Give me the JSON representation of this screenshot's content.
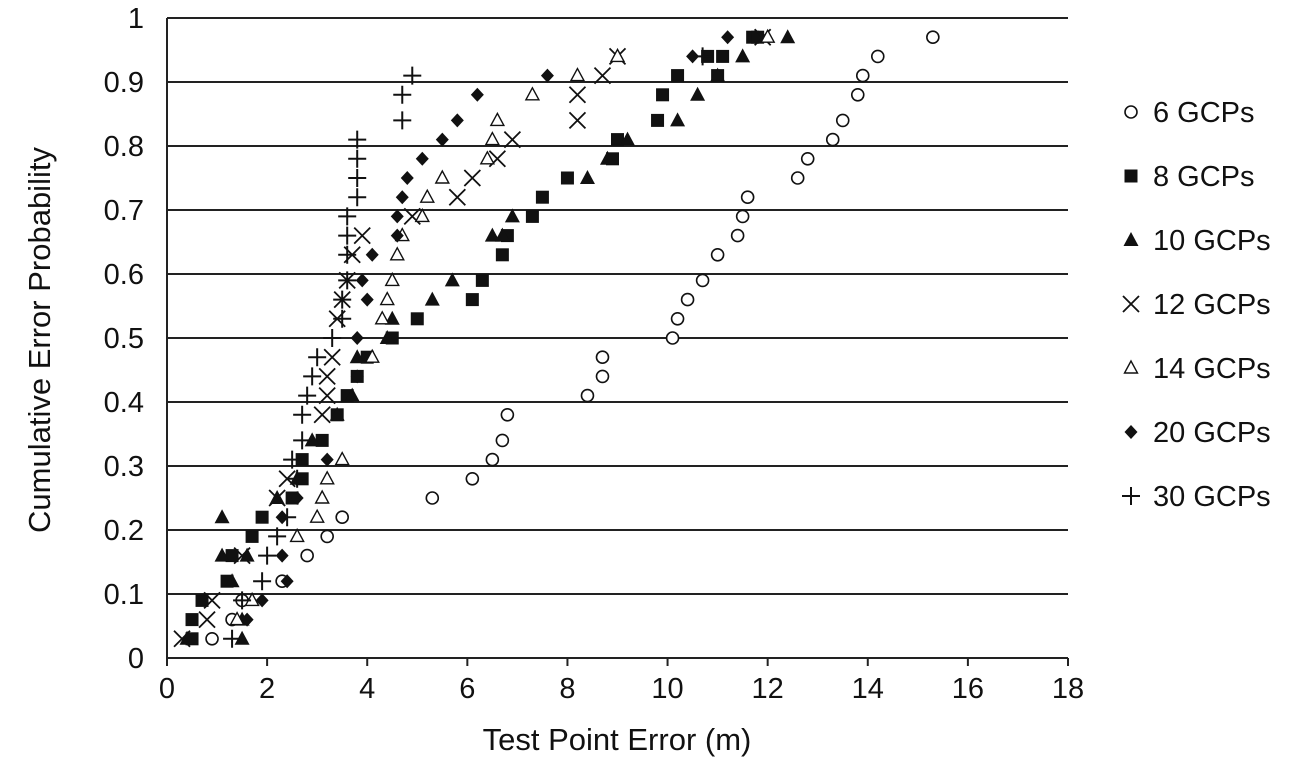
{
  "chart_data": {
    "type": "scatter",
    "title": "",
    "xlabel": "Test Point Error (m)",
    "ylabel": "Cumulative Error Probability",
    "xlim": [
      0,
      18
    ],
    "ylim": [
      0,
      1
    ],
    "x_ticks": [
      "0",
      "2",
      "4",
      "6",
      "8",
      "10",
      "12",
      "14",
      "16",
      "18"
    ],
    "y_ticks": [
      "0",
      "0.1",
      "0.2",
      "0.3",
      "0.4",
      "0.5",
      "0.6",
      "0.7",
      "0.8",
      "0.9",
      "1"
    ],
    "grid": "horizontal",
    "legend_position": "right",
    "series": [
      {
        "name": "6 GCPs",
        "marker": "circle",
        "points": [
          [
            0.9,
            0.03
          ],
          [
            1.3,
            0.06
          ],
          [
            1.5,
            0.09
          ],
          [
            2.3,
            0.12
          ],
          [
            2.8,
            0.16
          ],
          [
            3.2,
            0.19
          ],
          [
            3.5,
            0.22
          ],
          [
            5.3,
            0.25
          ],
          [
            6.1,
            0.28
          ],
          [
            6.5,
            0.31
          ],
          [
            6.7,
            0.34
          ],
          [
            6.8,
            0.38
          ],
          [
            8.4,
            0.41
          ],
          [
            8.7,
            0.44
          ],
          [
            8.7,
            0.47
          ],
          [
            10.1,
            0.5
          ],
          [
            10.2,
            0.53
          ],
          [
            10.4,
            0.56
          ],
          [
            10.7,
            0.59
          ],
          [
            11.0,
            0.63
          ],
          [
            11.4,
            0.66
          ],
          [
            11.5,
            0.69
          ],
          [
            11.6,
            0.72
          ],
          [
            12.6,
            0.75
          ],
          [
            12.8,
            0.78
          ],
          [
            13.3,
            0.81
          ],
          [
            13.5,
            0.84
          ],
          [
            13.8,
            0.88
          ],
          [
            13.9,
            0.91
          ],
          [
            14.2,
            0.94
          ],
          [
            15.3,
            0.97
          ]
        ]
      },
      {
        "name": "8 GCPs",
        "marker": "square",
        "points": [
          [
            0.5,
            0.03
          ],
          [
            0.5,
            0.06
          ],
          [
            0.7,
            0.09
          ],
          [
            1.2,
            0.12
          ],
          [
            1.3,
            0.16
          ],
          [
            1.7,
            0.19
          ],
          [
            1.9,
            0.22
          ],
          [
            2.5,
            0.25
          ],
          [
            2.7,
            0.28
          ],
          [
            2.7,
            0.31
          ],
          [
            3.1,
            0.34
          ],
          [
            3.4,
            0.38
          ],
          [
            3.6,
            0.41
          ],
          [
            3.8,
            0.44
          ],
          [
            4.0,
            0.47
          ],
          [
            4.5,
            0.5
          ],
          [
            5.0,
            0.53
          ],
          [
            6.1,
            0.56
          ],
          [
            6.3,
            0.59
          ],
          [
            6.7,
            0.63
          ],
          [
            6.8,
            0.66
          ],
          [
            7.3,
            0.69
          ],
          [
            7.5,
            0.72
          ],
          [
            8.0,
            0.75
          ],
          [
            8.9,
            0.78
          ],
          [
            9.0,
            0.81
          ],
          [
            9.8,
            0.84
          ],
          [
            9.9,
            0.88
          ],
          [
            10.2,
            0.91
          ],
          [
            11.0,
            0.91
          ],
          [
            10.8,
            0.94
          ],
          [
            11.1,
            0.94
          ],
          [
            11.7,
            0.97
          ],
          [
            11.8,
            0.97
          ]
        ]
      },
      {
        "name": "10 GCPs",
        "marker": "triangle",
        "points": [
          [
            0.4,
            0.03
          ],
          [
            1.5,
            0.03
          ],
          [
            1.5,
            0.06
          ],
          [
            1.3,
            0.12
          ],
          [
            1.1,
            0.16
          ],
          [
            1.6,
            0.16
          ],
          [
            1.1,
            0.22
          ],
          [
            2.2,
            0.25
          ],
          [
            2.6,
            0.28
          ],
          [
            2.9,
            0.34
          ],
          [
            3.4,
            0.38
          ],
          [
            3.7,
            0.41
          ],
          [
            3.8,
            0.47
          ],
          [
            4.4,
            0.5
          ],
          [
            4.5,
            0.53
          ],
          [
            5.3,
            0.56
          ],
          [
            5.7,
            0.59
          ],
          [
            6.5,
            0.66
          ],
          [
            6.7,
            0.66
          ],
          [
            6.9,
            0.69
          ],
          [
            8.4,
            0.75
          ],
          [
            8.8,
            0.78
          ],
          [
            9.2,
            0.81
          ],
          [
            10.2,
            0.84
          ],
          [
            10.6,
            0.88
          ],
          [
            11.0,
            0.91
          ],
          [
            11.5,
            0.94
          ],
          [
            12.4,
            0.97
          ]
        ]
      },
      {
        "name": "12 GCPs",
        "marker": "cross",
        "points": [
          [
            0.3,
            0.03
          ],
          [
            0.8,
            0.06
          ],
          [
            0.9,
            0.09
          ],
          [
            1.5,
            0.16
          ],
          [
            2.2,
            0.25
          ],
          [
            2.4,
            0.28
          ],
          [
            3.1,
            0.38
          ],
          [
            3.2,
            0.41
          ],
          [
            3.2,
            0.44
          ],
          [
            3.3,
            0.47
          ],
          [
            3.4,
            0.53
          ],
          [
            3.5,
            0.56
          ],
          [
            3.6,
            0.59
          ],
          [
            3.7,
            0.63
          ],
          [
            3.9,
            0.66
          ],
          [
            4.9,
            0.69
          ],
          [
            5.8,
            0.72
          ],
          [
            6.1,
            0.75
          ],
          [
            6.6,
            0.78
          ],
          [
            6.9,
            0.81
          ],
          [
            8.2,
            0.84
          ],
          [
            8.2,
            0.88
          ],
          [
            8.7,
            0.91
          ],
          [
            9.0,
            0.94
          ],
          [
            11.9,
            0.97
          ]
        ]
      },
      {
        "name": "14 GCPs",
        "marker": "triangle-open",
        "points": [
          [
            1.4,
            0.06
          ],
          [
            1.7,
            0.09
          ],
          [
            2.6,
            0.19
          ],
          [
            3.0,
            0.22
          ],
          [
            3.1,
            0.25
          ],
          [
            3.2,
            0.28
          ],
          [
            3.5,
            0.31
          ],
          [
            4.1,
            0.47
          ],
          [
            4.3,
            0.53
          ],
          [
            4.4,
            0.56
          ],
          [
            4.5,
            0.59
          ],
          [
            4.6,
            0.63
          ],
          [
            4.7,
            0.66
          ],
          [
            5.1,
            0.69
          ],
          [
            5.2,
            0.72
          ],
          [
            5.5,
            0.75
          ],
          [
            6.4,
            0.78
          ],
          [
            6.5,
            0.81
          ],
          [
            6.6,
            0.84
          ],
          [
            7.3,
            0.88
          ],
          [
            8.2,
            0.91
          ],
          [
            9.0,
            0.94
          ],
          [
            12.0,
            0.97
          ]
        ]
      },
      {
        "name": "20 GCPs",
        "marker": "diamond",
        "points": [
          [
            1.6,
            0.06
          ],
          [
            1.9,
            0.09
          ],
          [
            2.4,
            0.12
          ],
          [
            2.3,
            0.16
          ],
          [
            2.3,
            0.22
          ],
          [
            2.6,
            0.25
          ],
          [
            3.2,
            0.31
          ],
          [
            3.8,
            0.44
          ],
          [
            3.8,
            0.5
          ],
          [
            4.0,
            0.56
          ],
          [
            3.9,
            0.59
          ],
          [
            4.1,
            0.63
          ],
          [
            4.6,
            0.66
          ],
          [
            4.6,
            0.69
          ],
          [
            4.7,
            0.72
          ],
          [
            4.8,
            0.75
          ],
          [
            5.1,
            0.78
          ],
          [
            5.5,
            0.81
          ],
          [
            5.8,
            0.84
          ],
          [
            6.2,
            0.88
          ],
          [
            7.6,
            0.91
          ],
          [
            10.5,
            0.94
          ],
          [
            11.2,
            0.97
          ]
        ]
      },
      {
        "name": "30 GCPs",
        "marker": "plus",
        "points": [
          [
            1.3,
            0.03
          ],
          [
            1.5,
            0.09
          ],
          [
            1.9,
            0.12
          ],
          [
            2.0,
            0.16
          ],
          [
            2.2,
            0.19
          ],
          [
            2.4,
            0.22
          ],
          [
            2.6,
            0.28
          ],
          [
            2.5,
            0.31
          ],
          [
            2.7,
            0.34
          ],
          [
            2.7,
            0.38
          ],
          [
            2.8,
            0.41
          ],
          [
            2.9,
            0.44
          ],
          [
            3.0,
            0.47
          ],
          [
            3.3,
            0.5
          ],
          [
            3.5,
            0.53
          ],
          [
            3.5,
            0.56
          ],
          [
            3.6,
            0.59
          ],
          [
            3.6,
            0.63
          ],
          [
            3.6,
            0.66
          ],
          [
            3.6,
            0.69
          ],
          [
            3.8,
            0.72
          ],
          [
            3.8,
            0.75
          ],
          [
            3.8,
            0.78
          ],
          [
            3.8,
            0.81
          ],
          [
            4.7,
            0.84
          ],
          [
            4.7,
            0.88
          ],
          [
            4.9,
            0.91
          ],
          [
            10.7,
            0.94
          ]
        ]
      }
    ]
  }
}
